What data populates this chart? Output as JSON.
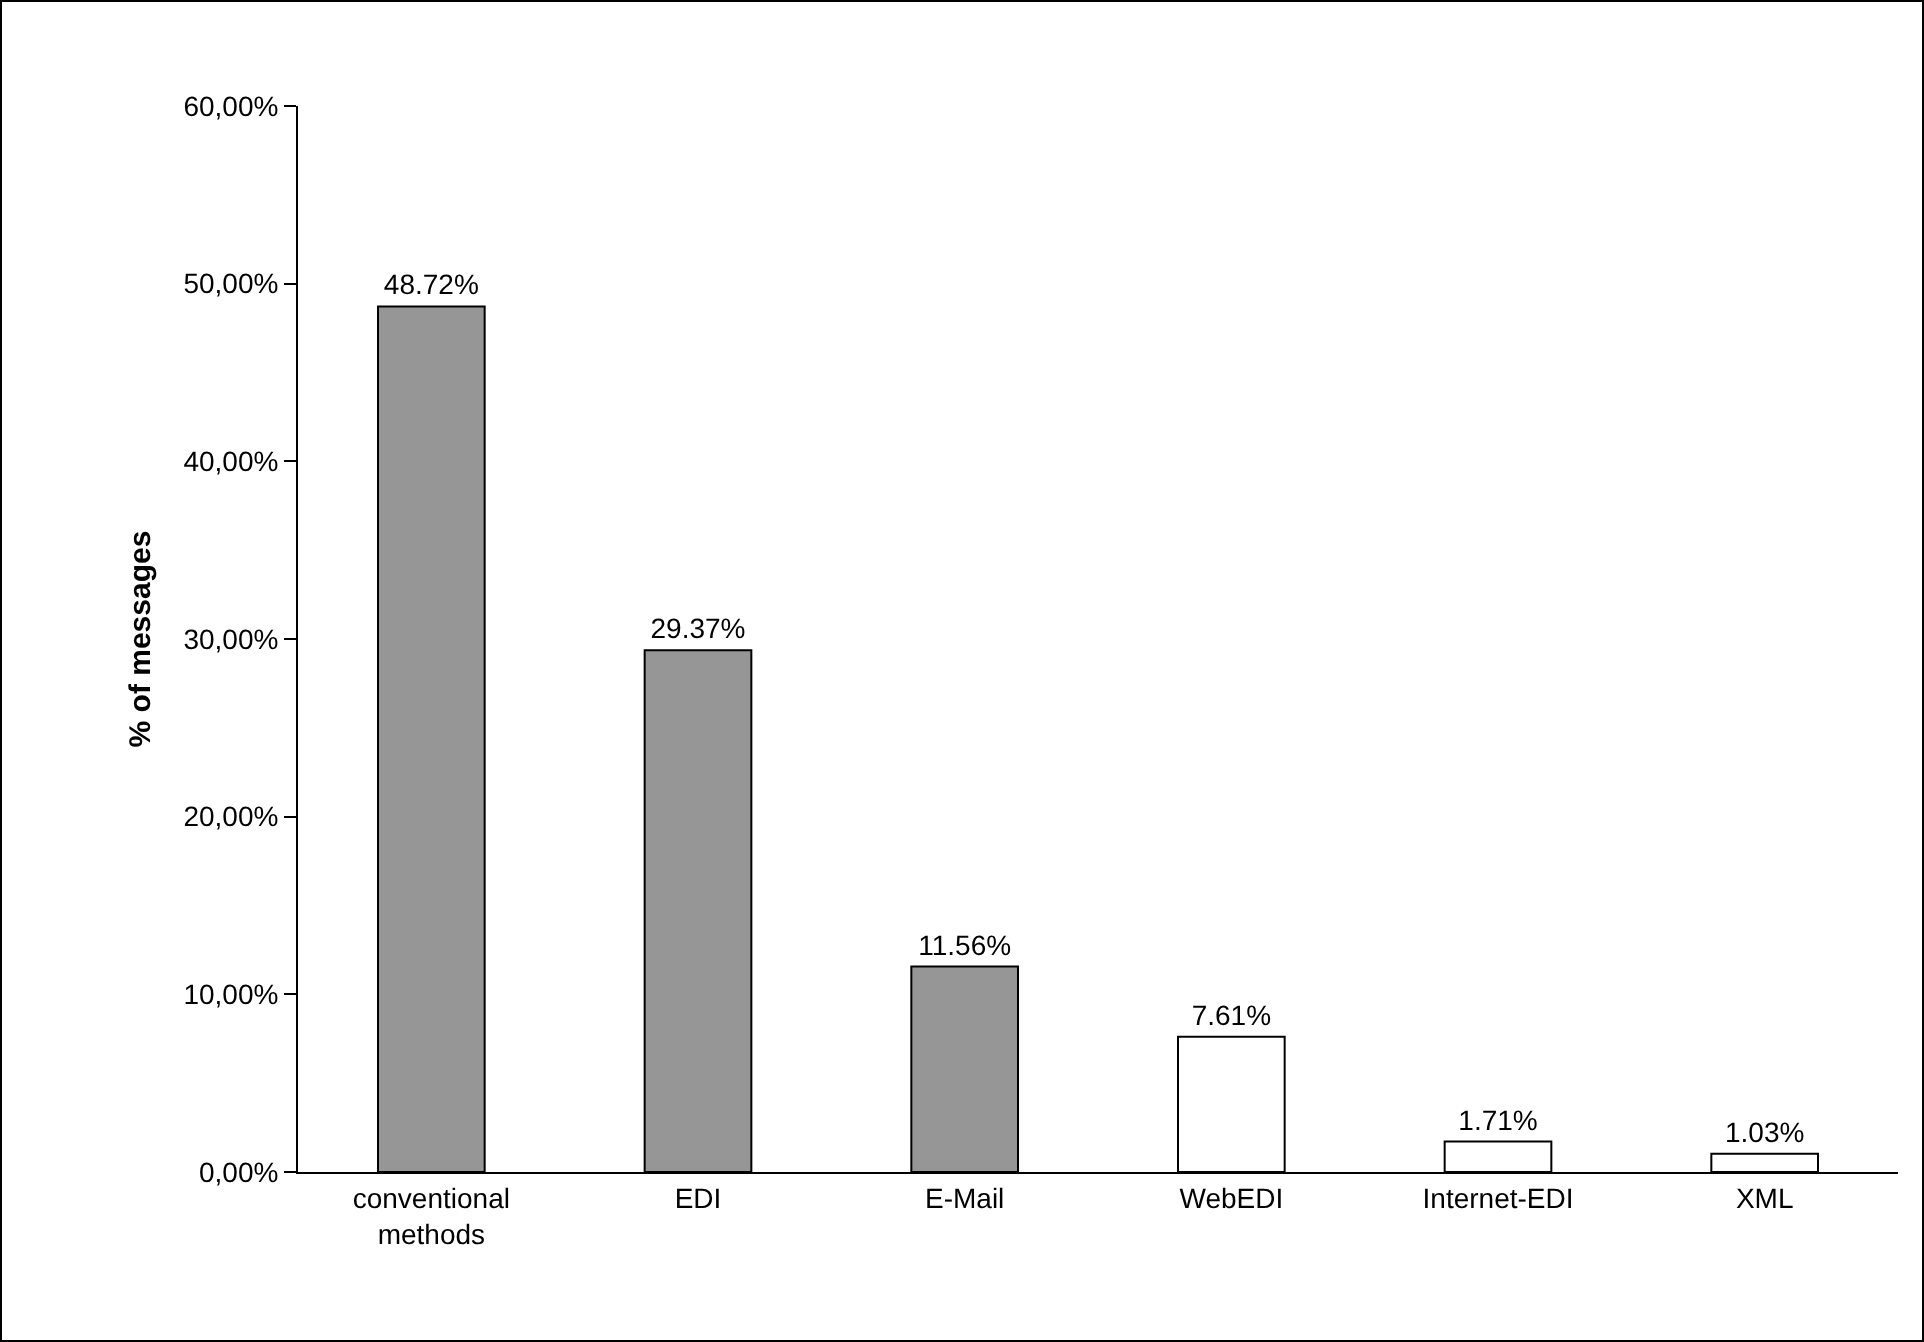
{
  "chart_data": {
    "type": "bar",
    "ylabel": "% of messages",
    "categories": [
      "conventional methods",
      "EDI",
      "E-Mail",
      "WebEDI",
      "Internet-EDI",
      "XML"
    ],
    "values": [
      48.72,
      29.37,
      11.56,
      7.61,
      1.71,
      1.03
    ],
    "colors": [
      "#969696",
      "#969696",
      "#969696",
      "#ffffff",
      "#ffffff",
      "#ffffff"
    ],
    "value_labels": [
      "48.72%",
      "29.37%",
      "11.56%",
      "7.61%",
      "1.71%",
      "1.03%"
    ],
    "ylim": [
      0,
      60
    ],
    "yticks": [
      {
        "value": 0,
        "label": "0,00%"
      },
      {
        "value": 10,
        "label": "10,00%"
      },
      {
        "value": 20,
        "label": "20,00%"
      },
      {
        "value": 30,
        "label": "30,00%"
      },
      {
        "value": 40,
        "label": "40,00%"
      },
      {
        "value": 50,
        "label": "50,00%"
      },
      {
        "value": 60,
        "label": "60,00%"
      }
    ],
    "grid": false
  }
}
